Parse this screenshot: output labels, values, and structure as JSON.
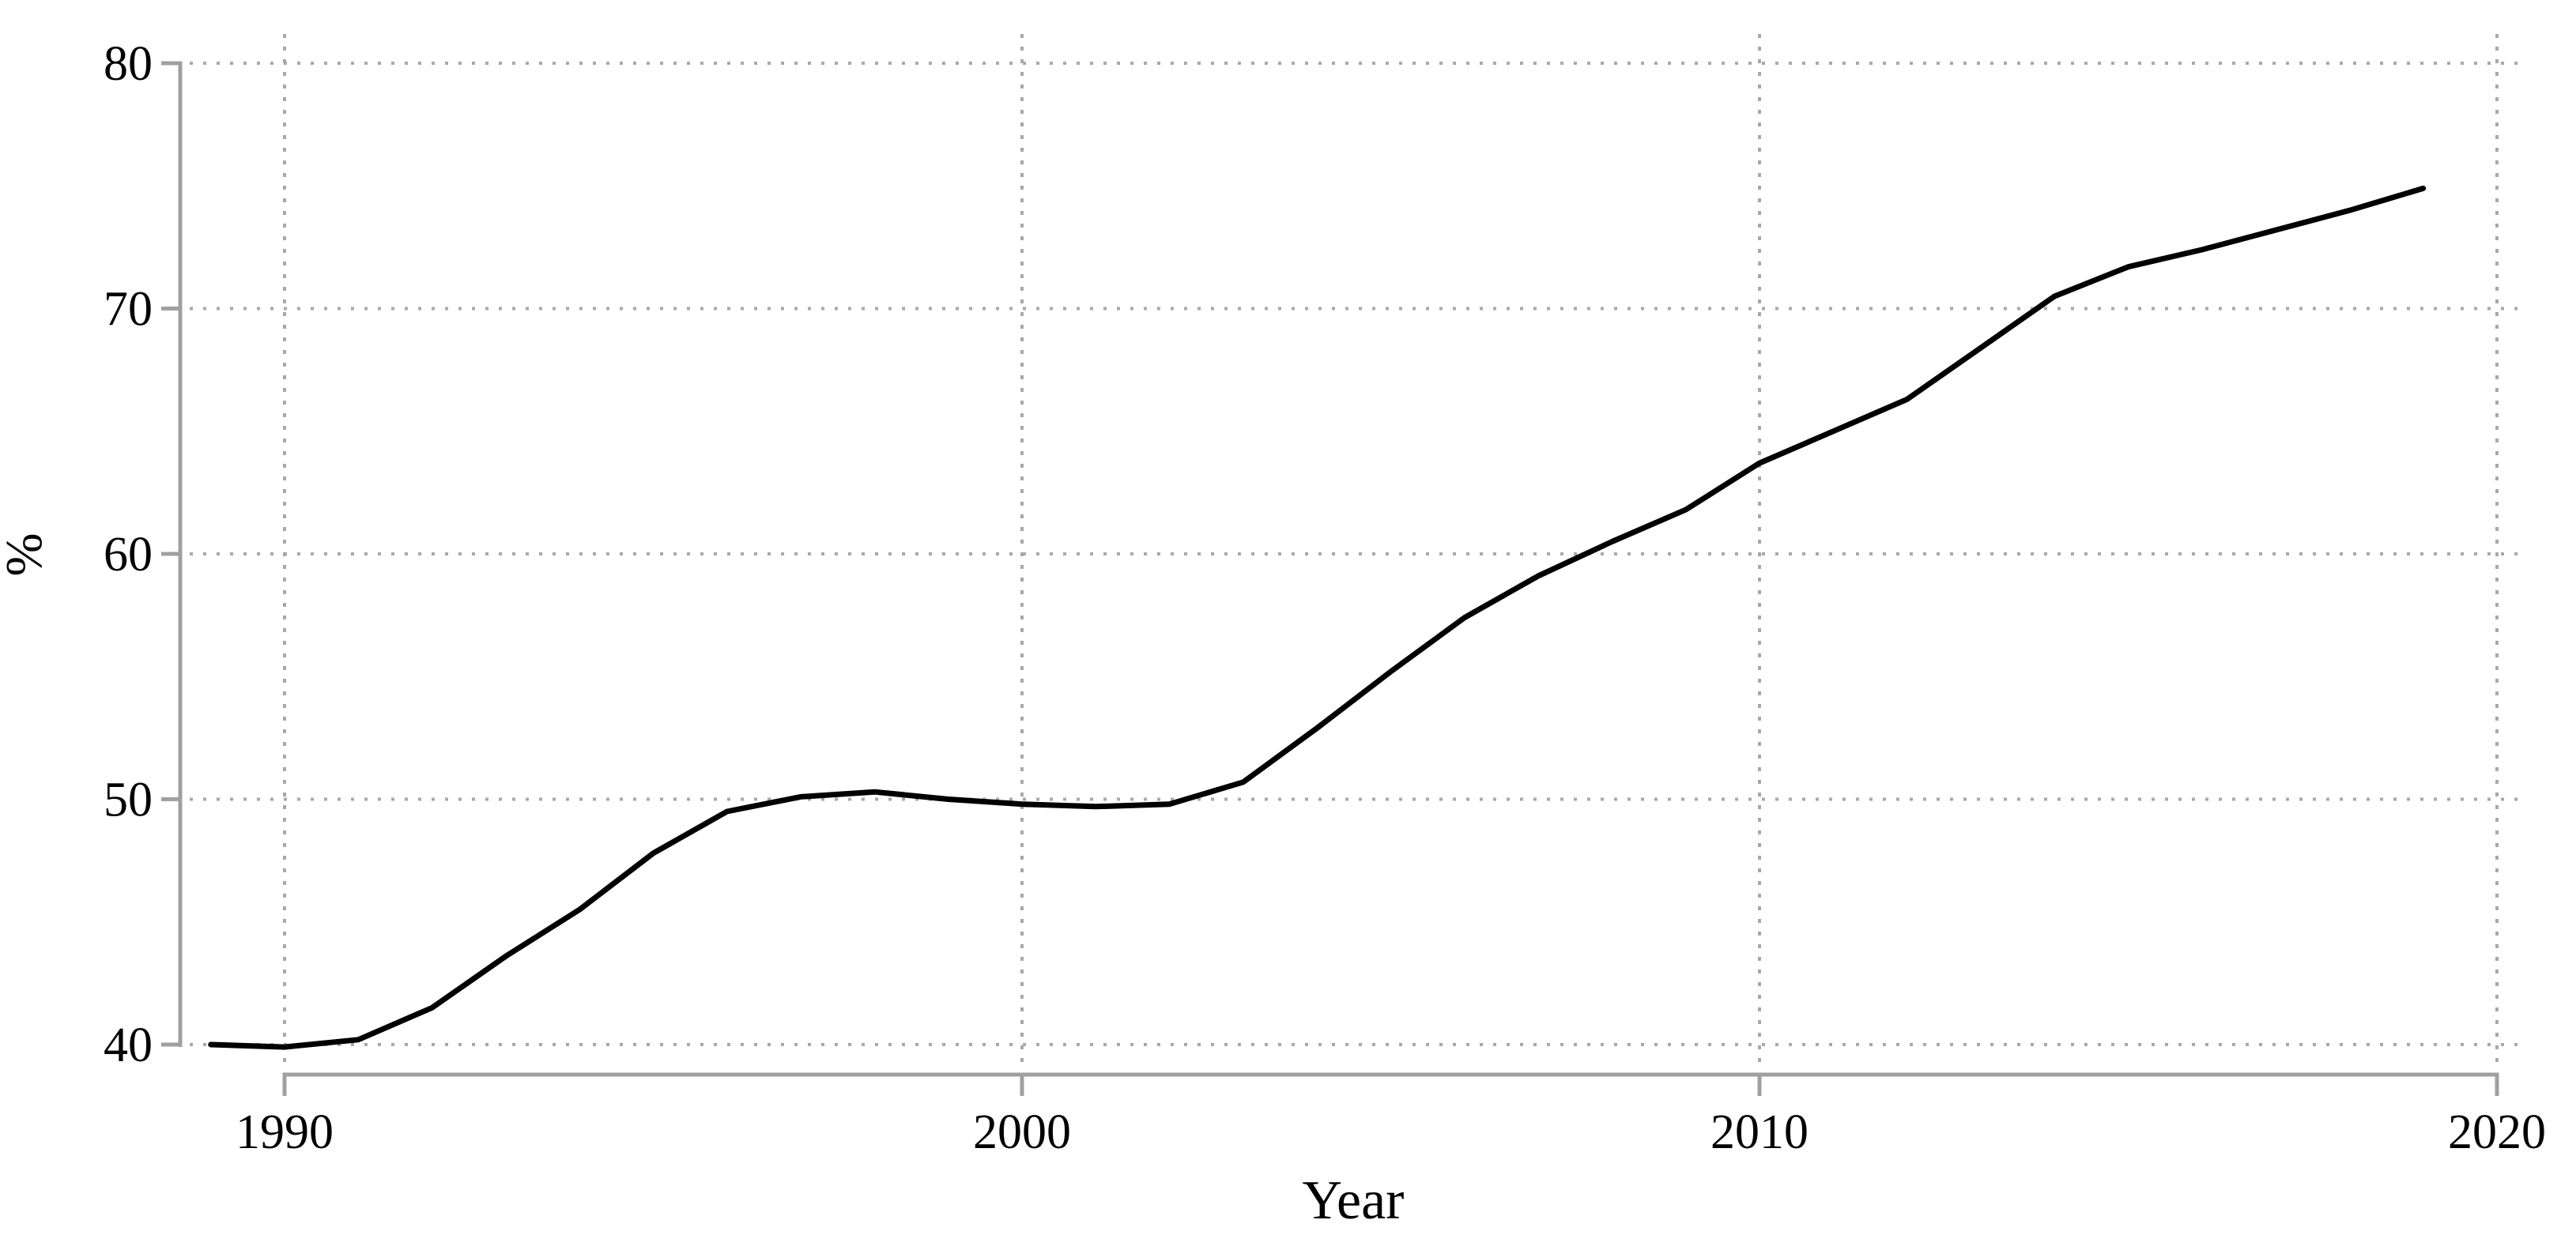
{
  "figure": {
    "background": "#ffffff"
  },
  "chart_data": {
    "type": "line",
    "title": "",
    "xlabel": "Year",
    "ylabel": "%",
    "x": [
      1989,
      1990,
      1991,
      1992,
      1993,
      1994,
      1995,
      1996,
      1997,
      1998,
      1999,
      2000,
      2001,
      2002,
      2003,
      2004,
      2005,
      2006,
      2007,
      2008,
      2009,
      2010,
      2011,
      2012,
      2013,
      2014,
      2015,
      2016,
      2017,
      2018,
      2019
    ],
    "series": [
      {
        "name": "percent",
        "values": [
          40.0,
          39.9,
          40.2,
          41.5,
          43.6,
          45.5,
          47.8,
          49.5,
          50.1,
          50.3,
          50.0,
          49.8,
          49.7,
          49.8,
          50.7,
          52.9,
          55.2,
          57.4,
          59.1,
          60.5,
          61.8,
          63.7,
          65.0,
          66.3,
          68.4,
          70.5,
          71.7,
          72.4,
          73.2,
          74.0,
          74.9
        ]
      }
    ],
    "x_ticks": [
      1990,
      2000,
      2010,
      2020
    ],
    "y_ticks": [
      40,
      50,
      60,
      70,
      80
    ],
    "xlim": [
      1989,
      2020
    ],
    "ylim": [
      38.8,
      81.3
    ],
    "grid": "dotted",
    "legend": "none",
    "line_color": "#000000",
    "axis_color": "#a0a0a0",
    "grid_color": "#a8a8a8",
    "text_color": "#000000"
  }
}
